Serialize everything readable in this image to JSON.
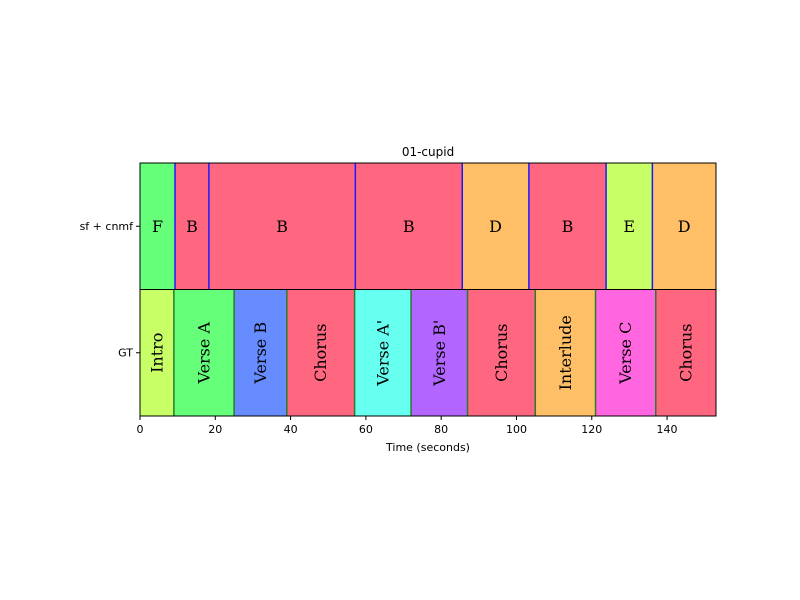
{
  "chart_data": {
    "type": "segment-timeline",
    "title": "01-cupid",
    "xlabel": "Time (seconds)",
    "xlim": [
      0,
      153
    ],
    "xticks": [
      0,
      20,
      40,
      60,
      80,
      100,
      120,
      140
    ],
    "rows": [
      {
        "name": "sf + cnmf",
        "boundary_color": "#1a1aff",
        "label_rotation": 0,
        "segments": [
          {
            "start": 0,
            "end": 9.3,
            "label": "F",
            "color": "#66ff7a"
          },
          {
            "start": 9.3,
            "end": 18.3,
            "label": "B",
            "color": "#ff6680"
          },
          {
            "start": 18.3,
            "end": 57.2,
            "label": "B",
            "color": "#ff6680"
          },
          {
            "start": 57.2,
            "end": 85.6,
            "label": "B",
            "color": "#ff6680"
          },
          {
            "start": 85.6,
            "end": 103.3,
            "label": "D",
            "color": "#ffbf66"
          },
          {
            "start": 103.3,
            "end": 123.8,
            "label": "B",
            "color": "#ff6680"
          },
          {
            "start": 123.8,
            "end": 136.1,
            "label": "E",
            "color": "#c8ff66"
          },
          {
            "start": 136.1,
            "end": 153,
            "label": "D",
            "color": "#ffbf66"
          }
        ]
      },
      {
        "name": "GT",
        "boundary_color": "#2a7a2a",
        "label_rotation": -90,
        "segments": [
          {
            "start": 0,
            "end": 9.0,
            "label": "Intro",
            "color": "#c8ff66"
          },
          {
            "start": 9.0,
            "end": 25.0,
            "label": "Verse A",
            "color": "#66ff7a"
          },
          {
            "start": 25.0,
            "end": 39.0,
            "label": "Verse B",
            "color": "#668cff"
          },
          {
            "start": 39.0,
            "end": 57.0,
            "label": "Chorus",
            "color": "#ff6680"
          },
          {
            "start": 57.0,
            "end": 72.0,
            "label": "Verse A'",
            "color": "#66fff0"
          },
          {
            "start": 72.0,
            "end": 87.0,
            "label": "Verse B'",
            "color": "#b366ff"
          },
          {
            "start": 87.0,
            "end": 105.0,
            "label": "Chorus",
            "color": "#ff6680"
          },
          {
            "start": 105.0,
            "end": 121.0,
            "label": "Interlude",
            "color": "#ffbf66"
          },
          {
            "start": 121.0,
            "end": 137.0,
            "label": "Verse C",
            "color": "#ff66e0"
          },
          {
            "start": 137.0,
            "end": 153,
            "label": "Chorus",
            "color": "#ff6680"
          }
        ]
      }
    ]
  }
}
